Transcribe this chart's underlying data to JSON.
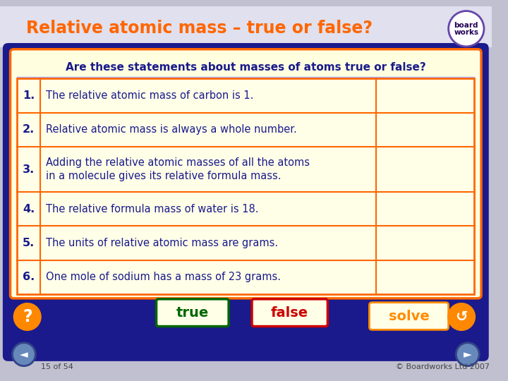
{
  "title": "Relative atomic mass – true or false?",
  "title_color": "#FF6600",
  "bg_outer": "#C0C0D0",
  "bg_title": "#E0E0EE",
  "bg_slide": "#1a1a8c",
  "bg_table": "#FFFFE0",
  "question_header": "Are these statements about masses of atoms true or false?",
  "question_header_color": "#1a1a8c",
  "table_border_color": "#FF6600",
  "statements": [
    {
      "num": "1.",
      "text": "The relative atomic mass of carbon is 1."
    },
    {
      "num": "2.",
      "text": "Relative atomic mass is always a whole number."
    },
    {
      "num": "3.",
      "text": "Adding the relative atomic masses of all the atoms\nin a molecule gives its relative formula mass."
    },
    {
      "num": "4.",
      "text": "The relative formula mass of water is 18."
    },
    {
      "num": "5.",
      "text": "The units of relative atomic mass are grams."
    },
    {
      "num": "6.",
      "text": "One mole of sodium has a mass of 23 grams."
    }
  ],
  "text_color": "#1a1a8c",
  "num_color": "#1a1a8c",
  "true_btn_color": "#006600",
  "false_btn_color": "#CC0000",
  "true_btn_bg": "#FFFFE8",
  "false_btn_bg": "#FFFFE8",
  "solve_btn_text_color": "#FF8C00",
  "solve_btn_bg": "#FFFFE8",
  "solve_btn_border": "#FF8C00",
  "solve_label": "solve",
  "bottom_text": "15 of 54",
  "copyright_text": "© Boardworks Ltd 2007",
  "orange_circle_color": "#FF8800",
  "nav_circle_color": "#6688BB",
  "nav_circle_border": "#334488",
  "logo_border": "#6644AA",
  "logo_text1": "board",
  "logo_text2": "works"
}
